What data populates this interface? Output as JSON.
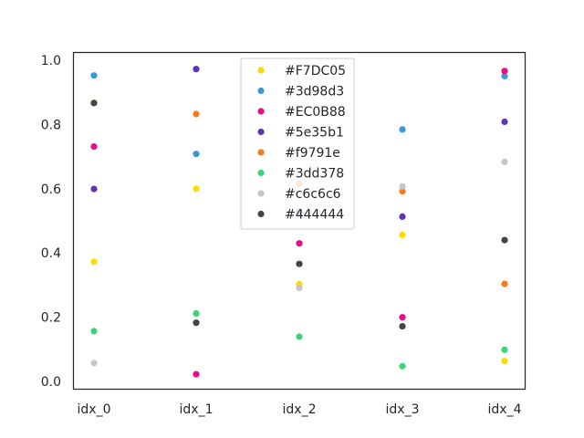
{
  "chart_data": {
    "type": "scatter",
    "categories": [
      "idx_0",
      "idx_1",
      "idx_2",
      "idx_3",
      "idx_4"
    ],
    "ylim": [
      -0.025,
      1.025
    ],
    "yticks": [
      0.0,
      0.2,
      0.4,
      0.6,
      0.8,
      1.0
    ],
    "ytick_labels": [
      "0.0",
      "0.2",
      "0.4",
      "0.6",
      "0.8",
      "1.0"
    ],
    "grid": false,
    "legend": "top-center",
    "series": [
      {
        "name": "#F7DC05",
        "color": "#F7DC05",
        "values": [
          0.373,
          0.6,
          0.303,
          0.456,
          0.064
        ]
      },
      {
        "name": "#3d98d3",
        "color": "#3d98d3",
        "values": [
          0.952,
          0.708,
          0.525,
          0.784,
          0.95
        ]
      },
      {
        "name": "#EC0B88",
        "color": "#EC0B88",
        "values": [
          0.731,
          0.023,
          0.43,
          0.2,
          0.966
        ]
      },
      {
        "name": "#5e35b1",
        "color": "#5e35b1",
        "values": [
          0.599,
          0.972,
          0.528,
          0.513,
          0.808
        ]
      },
      {
        "name": "#f9791e",
        "color": "#f9791e",
        "values": [
          0.867,
          0.832,
          0.615,
          0.592,
          0.304
        ]
      },
      {
        "name": "#3dd378",
        "color": "#3dd378",
        "values": [
          0.157,
          0.212,
          0.14,
          0.048,
          0.099
        ]
      },
      {
        "name": "#c6c6c6",
        "color": "#c6c6c6",
        "values": [
          0.058,
          0.184,
          0.291,
          0.607,
          0.683
        ]
      },
      {
        "name": "#444444",
        "color": "#444444",
        "values": [
          0.866,
          0.183,
          0.366,
          0.172,
          0.44
        ]
      }
    ]
  }
}
